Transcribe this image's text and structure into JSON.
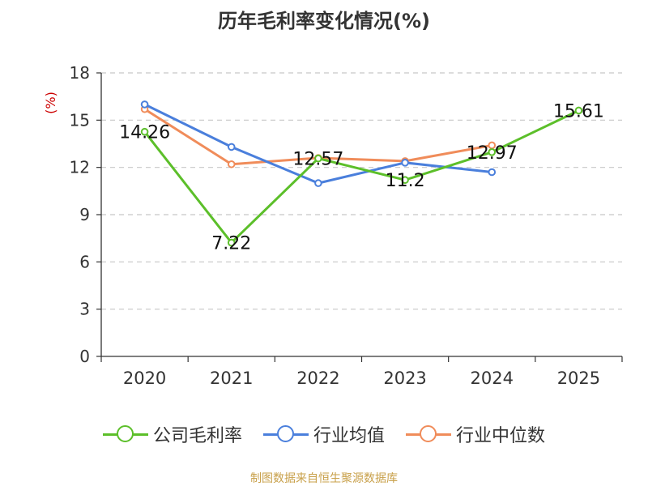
{
  "title": "历年毛利率变化情况(%)",
  "source": "制图数据来自恒生聚源数据库",
  "chart_data": {
    "type": "line",
    "title": "历年毛利率变化情况(%)",
    "ylabel": "(%)",
    "xlabel": "",
    "categories": [
      "2020",
      "2021",
      "2022",
      "2023",
      "2024",
      "2025"
    ],
    "ylim": [
      0,
      18
    ],
    "yticks": [
      0,
      3,
      6,
      9,
      12,
      15,
      18
    ],
    "grid": true,
    "legend_position": "bottom",
    "series": [
      {
        "name": "公司毛利率",
        "color": "#5cbf2a",
        "labeled": true,
        "values": [
          14.26,
          7.22,
          12.57,
          11.2,
          12.97,
          15.61
        ]
      },
      {
        "name": "行业均值",
        "color": "#4a7fdc",
        "labeled": false,
        "values": [
          16.0,
          13.3,
          11.0,
          12.3,
          11.7,
          null
        ]
      },
      {
        "name": "行业中位数",
        "color": "#f08c5a",
        "labeled": false,
        "values": [
          15.7,
          12.2,
          12.6,
          12.4,
          13.4,
          null
        ]
      }
    ]
  }
}
